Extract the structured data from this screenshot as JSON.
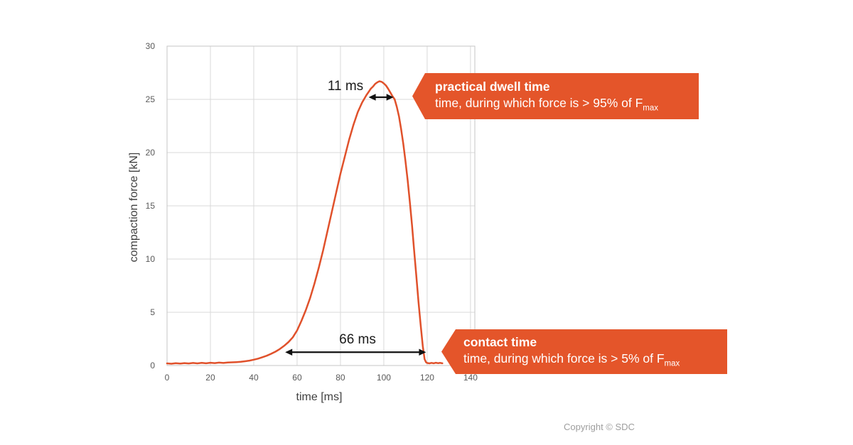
{
  "colors": {
    "accent_orange": "#E4552A",
    "curve_orange": "#E0512B",
    "grid_gray": "#D9D9D9",
    "axis_gray": "#C6C6C6",
    "tick_text_gray": "#595959",
    "arrow_black": "#111111"
  },
  "callouts": {
    "dwell": {
      "title": "practical dwell time",
      "desc_main": "time, during which force is > 95% of F",
      "desc_sub": "max"
    },
    "contact": {
      "title": "contact time",
      "desc_main": "time, during which force is > 5% of F",
      "desc_sub": "max"
    }
  },
  "footer": {
    "copyright": "Copyright © SDC"
  },
  "chart_data": {
    "type": "line",
    "title": "",
    "xlabel": "time [ms]",
    "ylabel": "compaction force [kN]",
    "xlim": [
      0,
      142
    ],
    "ylim": [
      0,
      30
    ],
    "x_ticks": [
      0,
      20,
      40,
      60,
      80,
      100,
      120,
      140
    ],
    "y_ticks": [
      0,
      5,
      10,
      15,
      20,
      25,
      30
    ],
    "grid": true,
    "legend": "none",
    "peak_force_kN": 26.7,
    "peak_time_ms": 98,
    "series": [
      {
        "name": "compaction force",
        "x": [
          0,
          2,
          4,
          6,
          8,
          10,
          12,
          14,
          16,
          18,
          20,
          22,
          24,
          26,
          28,
          30,
          32,
          34,
          36,
          38,
          40,
          42,
          44,
          46,
          48,
          50,
          52,
          54,
          56,
          58,
          60,
          62,
          64,
          66,
          68,
          70,
          72,
          74,
          76,
          78,
          80,
          82,
          84,
          86,
          88,
          90,
          92,
          93,
          94,
          95,
          96,
          97,
          98,
          99,
          100,
          101,
          102,
          103,
          104,
          105,
          106,
          107,
          108,
          109,
          110,
          111,
          112,
          113,
          114,
          115,
          116,
          117,
          118,
          118.8,
          119.5,
          120,
          121,
          122,
          123,
          124,
          125,
          126,
          127
        ],
        "y": [
          0.2,
          0.17,
          0.22,
          0.18,
          0.23,
          0.19,
          0.24,
          0.2,
          0.25,
          0.21,
          0.26,
          0.23,
          0.27,
          0.24,
          0.28,
          0.3,
          0.32,
          0.35,
          0.4,
          0.46,
          0.55,
          0.65,
          0.78,
          0.92,
          1.1,
          1.3,
          1.55,
          1.85,
          2.2,
          2.65,
          3.3,
          4.2,
          5.2,
          6.35,
          7.7,
          9.2,
          10.8,
          12.6,
          14.4,
          16.2,
          18.0,
          19.6,
          21.2,
          22.6,
          23.8,
          24.7,
          25.4,
          25.7,
          26.0,
          26.2,
          26.45,
          26.6,
          26.7,
          26.65,
          26.5,
          26.3,
          26.0,
          25.65,
          25.3,
          25.0,
          24.3,
          23.4,
          22.2,
          20.8,
          19.2,
          17.4,
          15.4,
          13.2,
          10.8,
          8.4,
          6.0,
          3.8,
          1.8,
          0.6,
          0.3,
          0.24,
          0.2,
          0.25,
          0.21,
          0.26,
          0.22,
          0.25,
          0.21
        ]
      }
    ],
    "annotations": [
      {
        "label": "11 ms",
        "x_from": 93,
        "x_to": 104.5,
        "at_force_kN": 25.2,
        "meaning": "practical dwell time: force > 95% of Fmax"
      },
      {
        "label": "66 ms",
        "x_from": 54.5,
        "x_to": 119.5,
        "at_force_kN": 1.25,
        "meaning": "contact time: force > 5% of Fmax"
      }
    ]
  }
}
